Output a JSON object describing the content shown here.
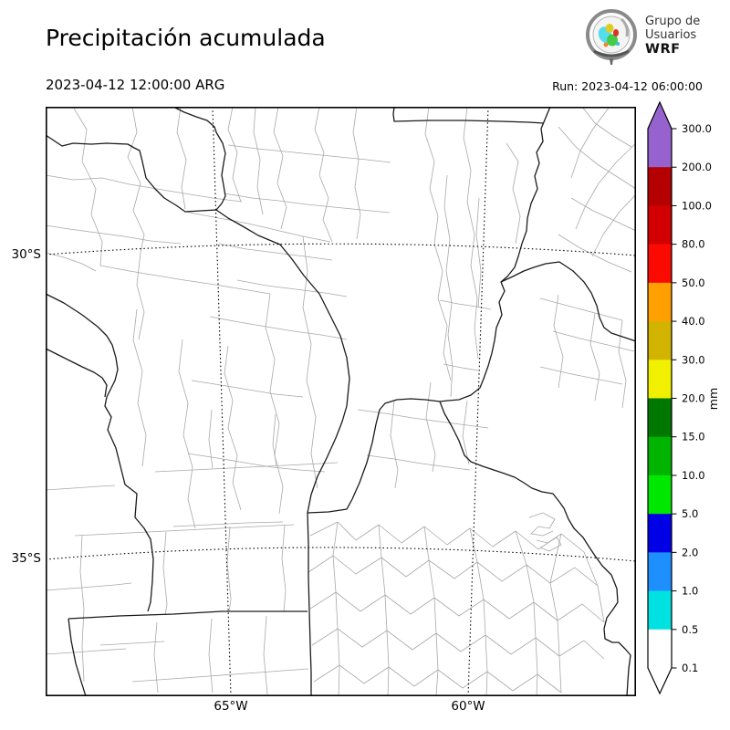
{
  "header": {
    "title": "Precipitación acumulada",
    "valid_time": "2023-04-12 12:00:00 ARG",
    "run_label": "Run: 2023-04-12 06:00:00"
  },
  "logo": {
    "line1": "Grupo de",
    "line2": "Usuarios",
    "line3": "WRF"
  },
  "axes": {
    "y_ticks": [
      {
        "label": "30°S"
      },
      {
        "label": "35°S"
      }
    ],
    "x_ticks": [
      {
        "label": "65°W"
      },
      {
        "label": "60°W"
      }
    ]
  },
  "colorbar": {
    "unit": "mm",
    "tick_labels": [
      "300.0",
      "200.0",
      "100.0",
      "80.0",
      "50.0",
      "40.0",
      "30.0",
      "20.0",
      "15.0",
      "10.0",
      "5.0",
      "2.0",
      "1.0",
      "0.5",
      "0.1"
    ],
    "segment_colors_top_to_bottom": [
      "#9663CE",
      "#B40000",
      "#D20000",
      "#FA0A00",
      "#FFA000",
      "#D2B400",
      "#F0F000",
      "#007800",
      "#00B400",
      "#00E800",
      "#0000E6",
      "#1E8FFF",
      "#00E2E2",
      "#FFFFFF"
    ],
    "extend_over_color": "#9663CE",
    "extend_under_color": "#FFFFFF",
    "outline_color": "#000000"
  },
  "map": {
    "background": "#ffffff",
    "frame_color": "#000000",
    "province_color": "#1a1a1a",
    "department_color": "#a8a8a8",
    "gridline_color": "#000000",
    "gridline_paths": [
      "M 0,162 Q 323,138 647,163",
      "M 0,496 Q 323,469 647,498",
      "M 183,0 L 203,646",
      "M 485,0 L 463,646"
    ],
    "province_paths": [
      "M 0,31 L 18,43 30,40 50,41 67,40 90,41 97,45 103,48 106,60 110,78 120,90 130,100 143,108 153,115 170,114 187,113 200,122 216,131 233,141 257,151 270,167 283,185 300,205 310,225 323,251 330,275 333,298 330,328",
      "M 140,0 L 152,6 165,11 177,15 185,22 187,28 194,40 197,51 195,62 193,75 195,86 197,98 193,106 187,113",
      "M 330,328 L 325,345 318,363 308,385 298,405 291,425 287,445",
      "M 287,445 L 288,480 288,515 289,553 290,590 291,620 291,646",
      "M 25,561 L 80,558 140,556 193,553 240,553 287,553",
      "M 25,561 L 28,585 33,610 39,630 44,646",
      "M 0,205 L 20,215 40,228 57,241 67,251 73,261 77,275 79,288 76,300 70,312 67,318 65,328 72,340 68,354 77,374 82,394 87,414 100,424 98,450 108,462 115,474 118,496 117,520 115,543 112,553",
      "M 0,265 L 20,275 40,285 53,291 62,297 67,305 65,318",
      "M 382,0 L 381,8 382,16 420,15 460,15 500,16 530,17 546,18",
      "M 553,0 L 548,12 543,24 545,38 538,50 541,62 536,76 539,90 532,106 528,122 527,136 522,150 518,164 514,176 506,186 499,192 503,202 497,214 500,228 494,242 492,256 489,270 485,284 480,298 476,308 466,316 453,321 441,322 432,323 437,336 445,350 453,366 459,382 466,389 479,394 491,398 503,402 514,406 524,412 533,418 544,422 556,424 563,433",
      "M 499,192 L 512,186 524,180 535,176 548,172 563,170 578,180 590,192 598,204 604,218 607,231 612,242 620,248 632,252 644,256 647,257",
      "M 563,433 L 568,440 573,452 579,462 589,472 596,483 602,492 610,503 620,513 626,528 627,543 621,552 615,560 612,572 613,583 621,587 628,587 635,594 641,601 639,616 638,630 637,646",
      "M 287,445 L 310,444 330,441 336,430 344,412 352,390 358,368 362,348 366,332 372,325 385,321 400,320 416,321 432,323"
    ],
    "department_paths": [
      "M 30,0 L 45,25 40,60 55,90 50,118 62,148 60,174",
      "M 95,0 L 100,28 90,55 104,84 96,114 108,140 104,160",
      "M 0,75 L 30,80 62,78 92,85 122,90 152,95 183,100 215,104",
      "M 148,0 L 144,28 154,58 149,88 153,112",
      "M 205,0 L 200,25 210,50 205,78 214,104",
      "M 255,0 L 250,28 260,54 254,84 264,110 258,134",
      "M 0,130 L 26,134 56,138 86,142 115,147 148,150",
      "M 60,174 L 92,180 122,185 152,190 186,195 216,200 246,205",
      "M 300,0 L 295,25 305,50 300,75 310,100 304,124 314,148",
      "M 153,115 L 190,122 222,128 252,135 282,142 312,148",
      "M 104,160 L 100,195 108,225 102,255",
      "M 0,160 L 20,165 40,172 55,180",
      "M 230,0 L 228,28 235,58 232,88 238,118",
      "M 341,0 L 337,28 343,58 339,88 345,118 341,145",
      "M 200,42 L 232,46 262,49 292,52 322,55 352,58 378,61",
      "M 196,95 L 226,100 256,103 286,107 316,110 346,113 377,116",
      "M 190,150 L 220,156 252,160 284,164 314,168",
      "M 210,190 L 242,196 274,200 306,204 330,208",
      "M 180,230 L 212,236 242,241 272,246 302,250 330,255",
      "M 200,262 L 196,292 205,322 200,352 210,382 205,412 214,442",
      "M 246,205 L 241,242 251,277 246,312 256,347 251,382 260,416 256,446",
      "M 150,255 L 146,290 156,325 151,360 161,395 156,430 164,462",
      "M 100,222 L 96,256 106,290 101,325 110,360 106,394",
      "M 160,300 L 192,305 222,310 252,315 282,318",
      "M 156,380 L 188,385 218,390 248,395 278,398 306,400",
      "M 282,142 L 287,180 282,220 291,260 286,300 296,340 291,380 298,418",
      "M 420,0 L 416,30 426,60 421,90 430,120 426,150 435,180 430,210 440,240 436,270 444,300",
      "M 462,0 L 458,34 466,70 462,104 470,140 466,174 473,210 470,244 474,276",
      "M 588,0 L 602,18 622,32 642,44",
      "M 562,22 L 582,45 606,64 630,79 647,90",
      "M 576,100 L 600,114 626,126 647,136",
      "M 562,140 L 586,155 616,170 642,181",
      "M 618,0 L 600,24 586,48 576,78",
      "M 647,40 L 626,60 606,84 591,110 581,134",
      "M 647,96 L 629,115 611,140 599,164",
      "M 440,75 L 437,110 443,145 439,180 445,215 441,250 446,285 444,318",
      "M 475,100 L 472,140 477,180 474,220",
      "M 432,212 L 452,216 472,219 488,222",
      "M 436,282 L 456,286 474,289",
      "M 505,40 L 518,60 512,90 520,120 515,150",
      "M 542,210 L 572,218 602,226 632,234",
      "M 556,246 L 586,254 616,261 645,268",
      "M 542,285 L 572,292 602,298 632,304",
      "M 562,206 L 557,240 567,274 562,308",
      "M 602,226 L 597,260 607,292 602,322",
      "M 632,234 L 628,268 636,300 632,330",
      "M 342,332 L 372,336 402,341 432,345 462,349 485,352",
      "M 352,382 L 382,386 412,391 442,395 465,398",
      "M 422,302 L 417,341 427,381 424,400",
      "M 462,322 L 457,361 464,392",
      "M 382,322 L 378,360 386,398 383,418",
      "M 120,400 L 162,398 202,396 242,394 282,392 320,390",
      "M 182,332 L 179,365 183,396",
      "M 252,337 L 249,370 253,393",
      "M 140,460 L 180,458 220,456 260,455",
      "M 95,630 L 152,626 206,622 260,618 288,616",
      "M 122,565 L 119,600 123,642",
      "M 182,561 L 179,600 183,642",
      "M 242,558 L 239,600 243,644",
      "M 32,470 L 72,468 112,466 152,464 192,462 232,460 272,458",
      "M 202,460 L 199,500 203,540 201,553",
      "M 262,458 L 259,495 263,530 261,553",
      "M 132,466 L 129,505 133,545 131,557",
      "M 60,590 L 95,588 130,586",
      "M 0,420 L 30,418 58,416 76,415",
      "M 40,470 L 38,510 42,550 40,590 42,630",
      "M 0,530 L 26,528 52,526 76,524 94,522",
      "M 0,600 L 30,598 58,596 88,594",
      "M 290,470 L 320,455 340,475 365,458 390,478 415,460 440,480 465,462 490,482 515,465 540,485 565,468 590,488",
      "M 288,510 L 315,492 340,512 368,494 395,515 420,497 448,517 473,499 500,520 527,502 553,522 580,505 605,525",
      "M 290,550 L 318,532 345,553 372,535 400,556 426,538 453,558 480,540 508,561 535,543 561,563 588,545 612,565",
      "M 292,590 L 320,572 347,592 374,574 402,595 428,577 455,597 482,579 510,600 537,582 563,602 590,585 612,605",
      "M 294,630 L 322,612 349,632 376,614 404,635 430,617 457,637 484,619 512,640 539,622 565,642",
      "M 320,455 L 315,492 318,532 320,572 322,612 321,646",
      "M 365,458 L 368,494 372,535 374,574 376,614 375,646",
      "M 415,460 L 420,497 426,538 428,577 430,617 428,646",
      "M 465,462 L 473,499 480,540 482,579 484,619 483,646",
      "M 515,465 L 527,502 535,543 537,582 539,622 538,646",
      "M 565,468 L 553,522 561,563 563,602 565,642",
      "M 590,488 L 605,525 612,565",
      "M 530,450 L 545,445 558,452 552,462 540,460 532,468 545,470 556,465",
      "M 538,475 L 550,478 560,472 565,480 552,487 542,483"
    ]
  }
}
